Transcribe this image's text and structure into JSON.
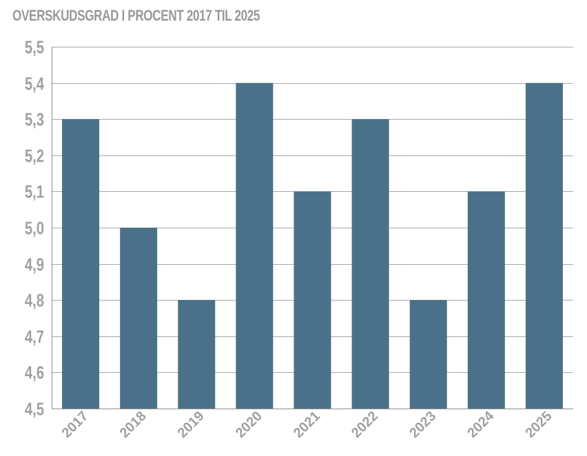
{
  "chart_data": {
    "type": "bar",
    "title": "OVERSKUDSGRAD I PROCENT 2017 TIL 2025",
    "categories": [
      "2017",
      "2018",
      "2019",
      "2020",
      "2021",
      "2022",
      "2023",
      "2024",
      "2025"
    ],
    "values": [
      5.3,
      5.0,
      4.8,
      5.4,
      5.1,
      5.3,
      4.8,
      5.1,
      5.4
    ],
    "ylim": [
      4.5,
      5.5
    ],
    "yticks": [
      4.5,
      4.6,
      4.7,
      4.8,
      4.9,
      5.0,
      5.1,
      5.2,
      5.3,
      5.4,
      5.5
    ],
    "ytick_labels": [
      "4,5",
      "4,6",
      "4,7",
      "4,8",
      "4,9",
      "5,0",
      "5,1",
      "5,2",
      "5,3",
      "5,4",
      "5,5"
    ],
    "xlabel": "",
    "ylabel": "",
    "grid": true,
    "legend": "none",
    "colors": {
      "bar": "#4a7189",
      "grid": "#a6a6a6",
      "axis": "#8c8c8c",
      "text": "#a0a0a0"
    }
  }
}
